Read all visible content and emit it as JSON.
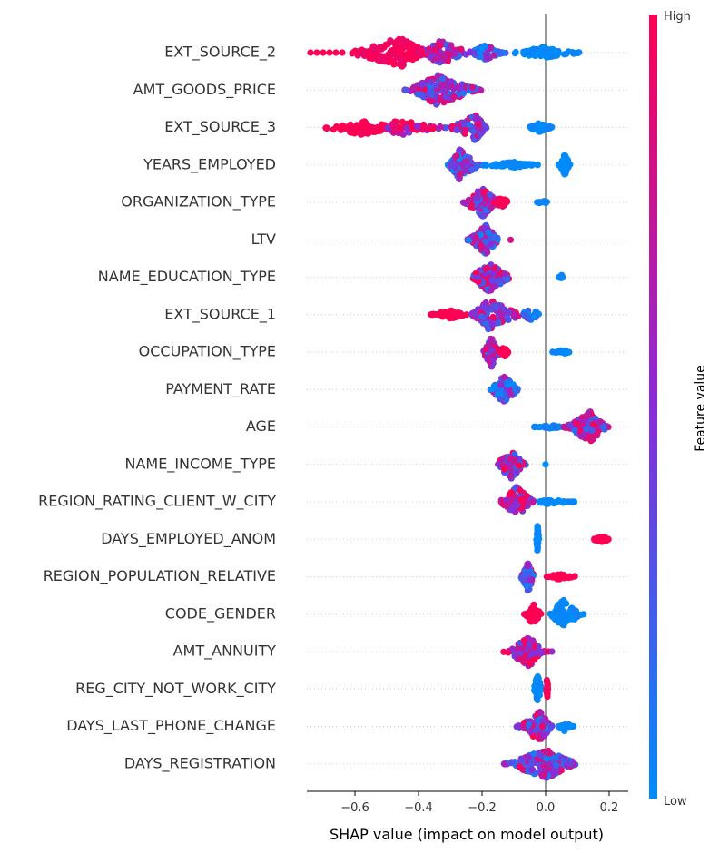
{
  "chart_data": {
    "type": "scatter",
    "subtype": "shap-beeswarm-summary",
    "title": "",
    "xlabel": "SHAP value (impact on model output)",
    "ylabel": "",
    "xlim": [
      -0.77,
      0.26
    ],
    "xticks": [
      -0.6,
      -0.4,
      -0.2,
      0.0,
      0.2
    ],
    "xtick_labels": [
      "−0.6",
      "−0.4",
      "−0.2",
      "0.0",
      "0.2"
    ],
    "zero_line": 0.0,
    "grid": "dotted horizontal per feature",
    "colorbar": {
      "title": "Feature value",
      "high_label": "High",
      "low_label": "Low",
      "high_color": "#ff0052",
      "mid_color": "#8a2bd9",
      "low_color": "#008bfb",
      "placement": "right"
    },
    "features": [
      {
        "name": "EXT_SOURCE_2",
        "clusters": [
          {
            "min": -0.74,
            "max": -0.64,
            "spread": 0.0,
            "count": 6,
            "color": 1.0
          },
          {
            "min": -0.64,
            "max": -0.35,
            "spread": 1.0,
            "count": 160,
            "color": 0.95,
            "peak": -0.46
          },
          {
            "min": -0.4,
            "max": -0.22,
            "spread": 0.8,
            "count": 90,
            "color": 0.6,
            "peak": -0.33
          },
          {
            "min": -0.25,
            "max": -0.12,
            "spread": 0.5,
            "count": 60,
            "color": 0.3,
            "peak": -0.19
          },
          {
            "min": -0.12,
            "max": 0.13,
            "spread": 0.35,
            "count": 80,
            "color": 0.0,
            "peak": -0.01
          }
        ]
      },
      {
        "name": "AMT_GOODS_PRICE",
        "clusters": [
          {
            "min": -0.45,
            "max": -0.19,
            "spread": 1.0,
            "count": 180,
            "color": 0.55,
            "peak": -0.34
          }
        ]
      },
      {
        "name": "EXT_SOURCE_3",
        "clusters": [
          {
            "min": -0.72,
            "max": -0.45,
            "spread": 0.5,
            "count": 90,
            "color": 1.0,
            "peak": -0.58
          },
          {
            "min": -0.5,
            "max": -0.3,
            "spread": 0.55,
            "count": 70,
            "color": 0.9,
            "peak": -0.47
          },
          {
            "min": -0.32,
            "max": -0.18,
            "spread": 0.85,
            "count": 100,
            "color": 0.55,
            "peak": -0.22
          },
          {
            "min": -0.06,
            "max": 0.03,
            "spread": 0.3,
            "count": 50,
            "color": 0.0,
            "peak": -0.02
          }
        ]
      },
      {
        "name": "YEARS_EMPLOYED",
        "clusters": [
          {
            "min": -0.31,
            "max": -0.2,
            "spread": 1.0,
            "count": 130,
            "color": 0.4,
            "peak": -0.27
          },
          {
            "min": -0.22,
            "max": -0.02,
            "spread": 0.2,
            "count": 60,
            "color": 0.0,
            "peak": -0.1
          },
          {
            "min": 0.04,
            "max": 0.08,
            "spread": 0.8,
            "count": 50,
            "color": 0.0,
            "peak": 0.06
          }
        ]
      },
      {
        "name": "ORGANIZATION_TYPE",
        "clusters": [
          {
            "min": -0.26,
            "max": -0.14,
            "spread": 1.0,
            "count": 120,
            "color": 0.55,
            "peak": -0.2
          },
          {
            "min": -0.17,
            "max": -0.11,
            "spread": 0.35,
            "count": 30,
            "color": 1.0,
            "peak": -0.14
          },
          {
            "min": -0.03,
            "max": 0.02,
            "spread": 0.1,
            "count": 12,
            "color": 0.0,
            "peak": -0.01
          }
        ]
      },
      {
        "name": "LTV",
        "clusters": [
          {
            "min": -0.25,
            "max": -0.14,
            "spread": 1.0,
            "count": 110,
            "color": 0.45,
            "peak": -0.19
          },
          {
            "min": -0.11,
            "max": -0.11,
            "spread": 0.0,
            "count": 1,
            "color": 0.4
          }
        ]
      },
      {
        "name": "NAME_EDUCATION_TYPE",
        "clusters": [
          {
            "min": -0.24,
            "max": -0.1,
            "spread": 1.0,
            "count": 120,
            "color": 0.6,
            "peak": -0.18
          },
          {
            "min": 0.04,
            "max": 0.06,
            "spread": 0.15,
            "count": 10,
            "color": 0.0,
            "peak": 0.05
          }
        ]
      },
      {
        "name": "EXT_SOURCE_1",
        "clusters": [
          {
            "min": -0.37,
            "max": -0.24,
            "spread": 0.3,
            "count": 60,
            "color": 1.0,
            "peak": -0.3
          },
          {
            "min": -0.24,
            "max": -0.06,
            "spread": 1.0,
            "count": 120,
            "color": 0.6,
            "peak": -0.18
          },
          {
            "min": -0.08,
            "max": 0.0,
            "spread": 0.45,
            "count": 30,
            "color": 0.1,
            "peak": -0.05
          }
        ]
      },
      {
        "name": "OCCUPATION_TYPE",
        "clusters": [
          {
            "min": -0.2,
            "max": -0.14,
            "spread": 1.0,
            "count": 90,
            "color": 0.6,
            "peak": -0.17
          },
          {
            "min": -0.15,
            "max": -0.11,
            "spread": 0.35,
            "count": 30,
            "color": 1.0,
            "peak": -0.13
          },
          {
            "min": 0.02,
            "max": 0.08,
            "spread": 0.15,
            "count": 20,
            "color": 0.0,
            "peak": 0.05
          }
        ]
      },
      {
        "name": "PAYMENT_RATE",
        "clusters": [
          {
            "min": -0.18,
            "max": -0.08,
            "spread": 1.0,
            "count": 90,
            "color": 0.3,
            "peak": -0.13
          }
        ]
      },
      {
        "name": "AGE",
        "clusters": [
          {
            "min": -0.05,
            "max": 0.06,
            "spread": 0.12,
            "count": 30,
            "color": 0.05,
            "peak": 0.02
          },
          {
            "min": 0.05,
            "max": 0.2,
            "spread": 1.0,
            "count": 140,
            "color": 0.6,
            "peak": 0.14
          }
        ]
      },
      {
        "name": "NAME_INCOME_TYPE",
        "clusters": [
          {
            "min": -0.16,
            "max": -0.06,
            "spread": 1.0,
            "count": 100,
            "color": 0.6,
            "peak": -0.11
          },
          {
            "min": 0.0,
            "max": 0.0,
            "spread": 0.0,
            "count": 1,
            "color": 0.0
          }
        ]
      },
      {
        "name": "REGION_RATING_CLIENT_W_CITY",
        "clusters": [
          {
            "min": -0.15,
            "max": -0.03,
            "spread": 1.0,
            "count": 110,
            "color": 0.7,
            "peak": -0.09
          },
          {
            "min": -0.03,
            "max": 0.1,
            "spread": 0.15,
            "count": 40,
            "color": 0.0,
            "peak": 0.01
          }
        ]
      },
      {
        "name": "DAYS_EMPLOYED_ANOM",
        "clusters": [
          {
            "min": -0.03,
            "max": -0.02,
            "spread": 1.0,
            "count": 40,
            "color": 0.0,
            "peak": -0.025
          },
          {
            "min": 0.14,
            "max": 0.21,
            "spread": 0.2,
            "count": 40,
            "color": 1.0,
            "peak": 0.18
          }
        ]
      },
      {
        "name": "REGION_POPULATION_RELATIVE",
        "clusters": [
          {
            "min": -0.08,
            "max": -0.03,
            "spread": 1.0,
            "count": 70,
            "color": 0.45,
            "peak": -0.055
          },
          {
            "min": 0.0,
            "max": 0.11,
            "spread": 0.18,
            "count": 40,
            "color": 1.0,
            "peak": 0.04
          }
        ]
      },
      {
        "name": "CODE_GENDER",
        "clusters": [
          {
            "min": -0.07,
            "max": -0.01,
            "spread": 0.7,
            "count": 50,
            "color": 1.0,
            "peak": -0.04
          },
          {
            "min": 0.01,
            "max": 0.12,
            "spread": 1.0,
            "count": 80,
            "color": 0.0,
            "peak": 0.055
          }
        ]
      },
      {
        "name": "AMT_ANNUITY",
        "clusters": [
          {
            "min": -0.14,
            "max": 0.0,
            "spread": 1.0,
            "count": 100,
            "color": 0.7,
            "peak": -0.05
          },
          {
            "min": 0.01,
            "max": 0.02,
            "spread": 0.0,
            "count": 2,
            "color": 0.9
          }
        ]
      },
      {
        "name": "REG_CITY_NOT_WORK_CITY",
        "clusters": [
          {
            "min": -0.04,
            "max": -0.01,
            "spread": 1.0,
            "count": 50,
            "color": 0.0,
            "peak": -0.025
          },
          {
            "min": 0.0,
            "max": 0.01,
            "spread": 0.75,
            "count": 20,
            "color": 1.0,
            "peak": 0.005
          }
        ]
      },
      {
        "name": "DAYS_LAST_PHONE_CHANGE",
        "clusters": [
          {
            "min": -0.1,
            "max": 0.03,
            "spread": 1.0,
            "count": 100,
            "color": 0.55,
            "peak": -0.02
          },
          {
            "min": 0.03,
            "max": 0.09,
            "spread": 0.3,
            "count": 25,
            "color": 0.0,
            "peak": 0.06
          }
        ]
      },
      {
        "name": "DAYS_REGISTRATION",
        "clusters": [
          {
            "min": -0.14,
            "max": 0.11,
            "spread": 1.0,
            "count": 160,
            "color": 0.5,
            "peak": 0.0
          }
        ]
      }
    ]
  }
}
